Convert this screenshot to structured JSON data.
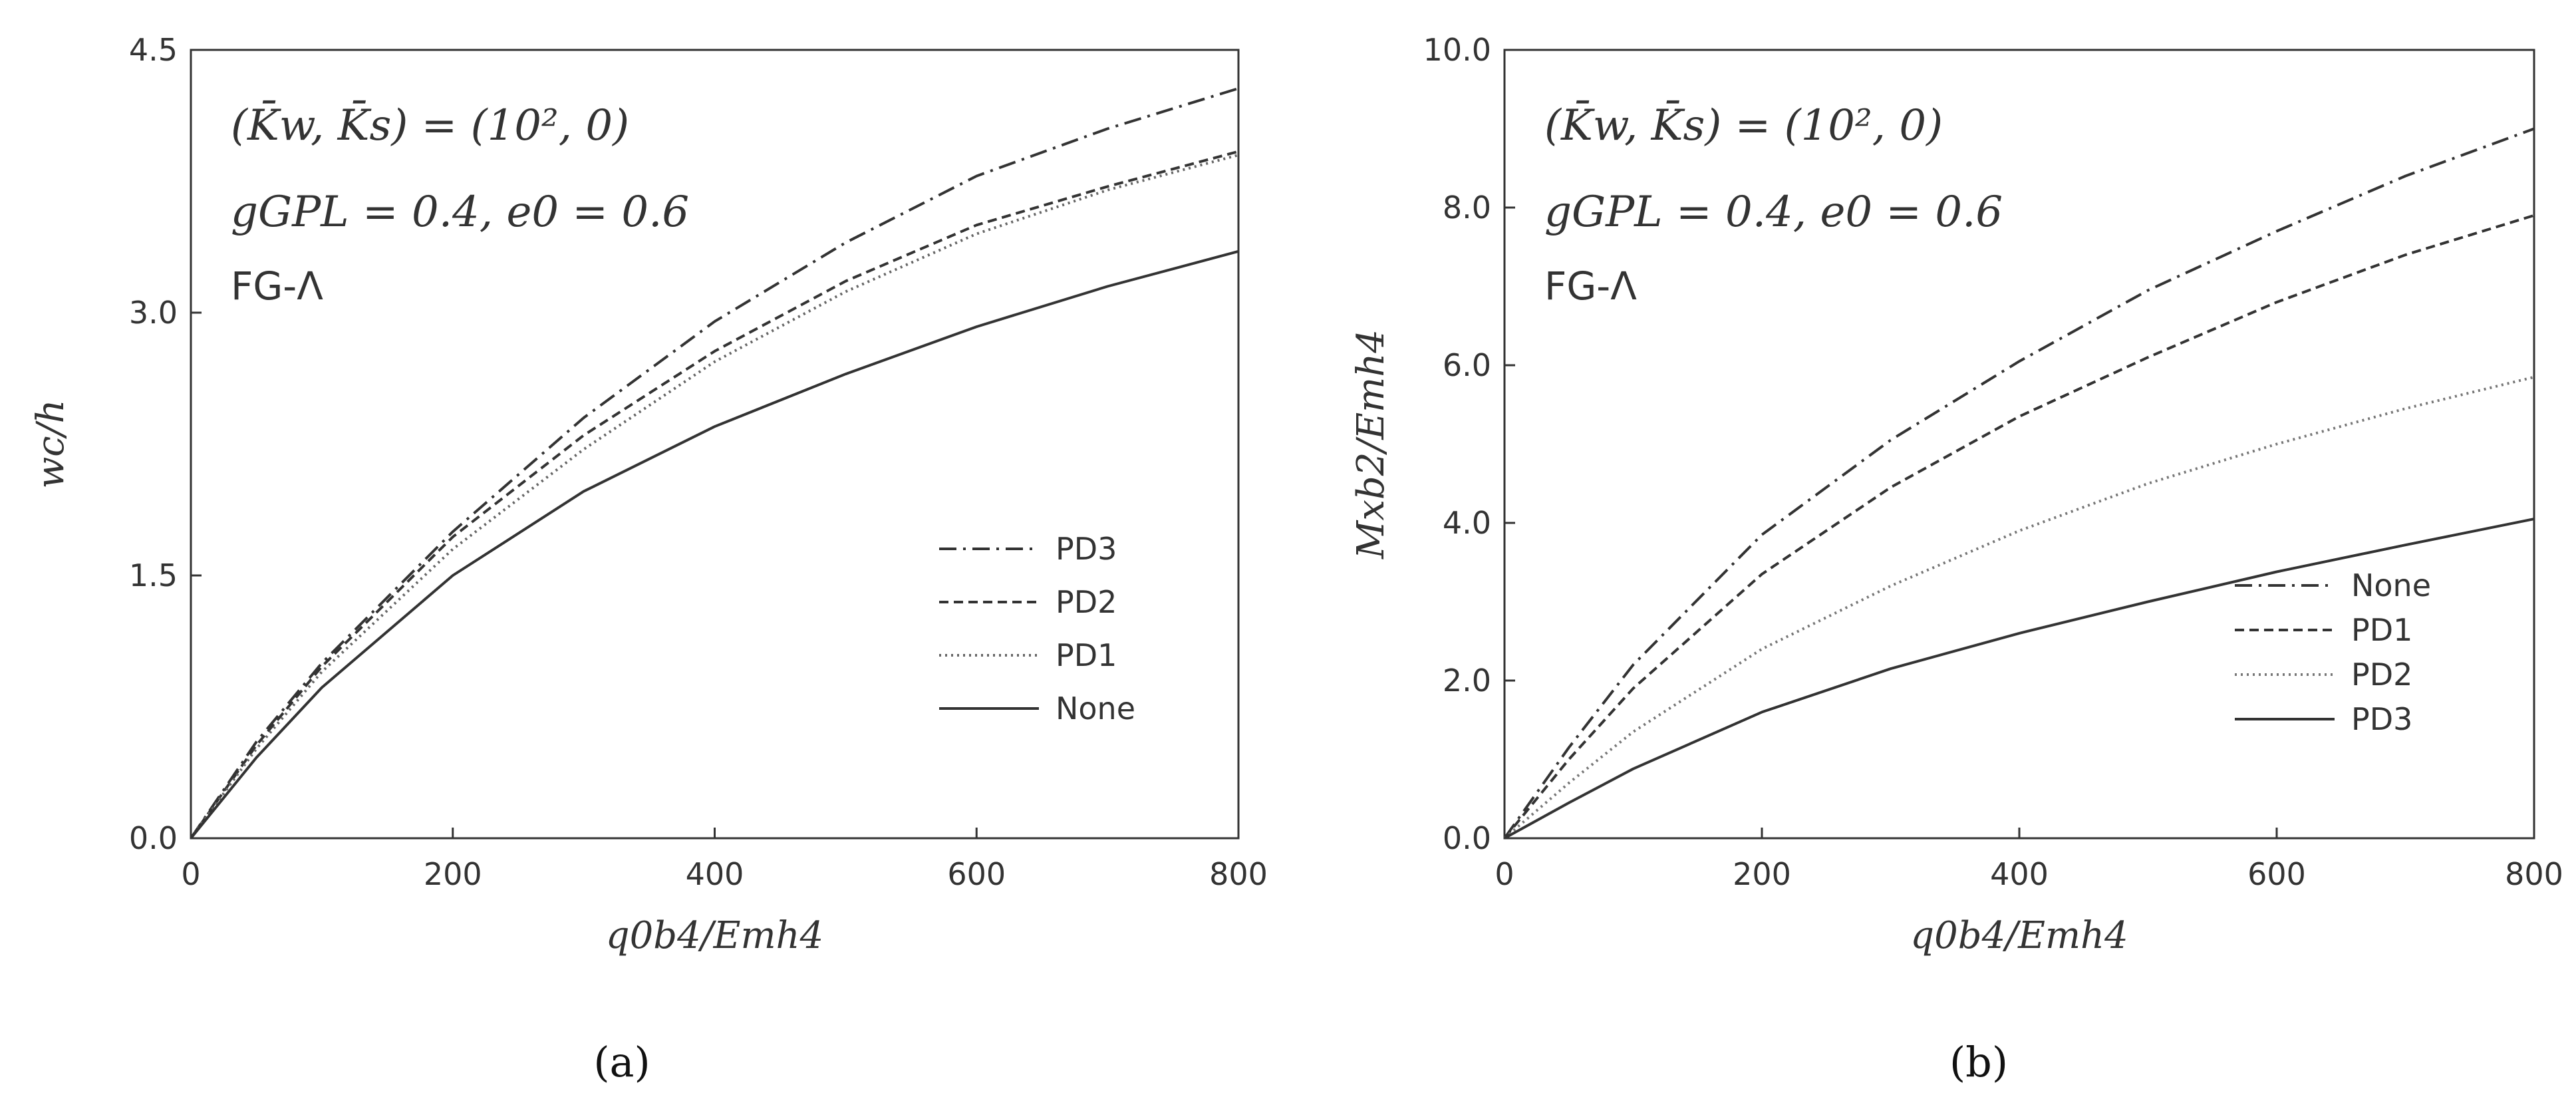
{
  "chart_data": [
    {
      "type": "line",
      "panel_label": "(a)",
      "xlabel": "q0b4/Emh4",
      "ylabel": "wc/h",
      "xlim": [
        0,
        800
      ],
      "ylim": [
        0,
        4.5
      ],
      "xticks": [
        "0",
        "200",
        "400",
        "600",
        "800"
      ],
      "yticks": [
        "0.0",
        "1.5",
        "3.0",
        "4.5"
      ],
      "grid": false,
      "legend_position": "bottom-right",
      "annotations": [
        "(K̄w, K̄s) = (10², 0)",
        "gGPL = 0.4, e0 = 0.6",
        "FG-Λ"
      ],
      "legend": [
        {
          "name": "PD3",
          "style": "dashdot"
        },
        {
          "name": "PD2",
          "style": "dashed"
        },
        {
          "name": "PD1",
          "style": "dotted"
        },
        {
          "name": "None",
          "style": "solid"
        }
      ],
      "series": [
        {
          "name": "PD3",
          "style": "dashdot",
          "color": "#333333",
          "x": [
            0,
            50,
            100,
            200,
            300,
            400,
            500,
            600,
            700,
            800
          ],
          "y": [
            0,
            0.55,
            1.0,
            1.75,
            2.4,
            2.95,
            3.4,
            3.78,
            4.05,
            4.28
          ]
        },
        {
          "name": "PD2",
          "style": "dashed",
          "color": "#333333",
          "x": [
            0,
            50,
            100,
            200,
            300,
            400,
            500,
            600,
            700,
            800
          ],
          "y": [
            0,
            0.53,
            0.98,
            1.72,
            2.3,
            2.78,
            3.18,
            3.5,
            3.72,
            3.92
          ]
        },
        {
          "name": "PD1",
          "style": "dotted",
          "color": "#666666",
          "x": [
            0,
            50,
            100,
            200,
            300,
            400,
            500,
            600,
            700,
            800
          ],
          "y": [
            0,
            0.51,
            0.95,
            1.65,
            2.22,
            2.72,
            3.12,
            3.45,
            3.7,
            3.9
          ]
        },
        {
          "name": "None",
          "style": "solid",
          "color": "#333333",
          "x": [
            0,
            50,
            100,
            200,
            300,
            400,
            500,
            600,
            700,
            800
          ],
          "y": [
            0,
            0.46,
            0.86,
            1.5,
            1.98,
            2.35,
            2.65,
            2.92,
            3.15,
            3.35
          ]
        }
      ]
    },
    {
      "type": "line",
      "panel_label": "(b)",
      "xlabel": "q0b4/Emh4",
      "ylabel": "Mxb2/Emh4",
      "xlim": [
        0,
        800
      ],
      "ylim": [
        0,
        10
      ],
      "xticks": [
        "0",
        "200",
        "400",
        "600",
        "800"
      ],
      "yticks": [
        "0.0",
        "2.0",
        "4.0",
        "6.0",
        "8.0",
        "10.0"
      ],
      "grid": false,
      "legend_position": "bottom-right",
      "annotations": [
        "(K̄w, K̄s) = (10², 0)",
        "gGPL = 0.4, e0 = 0.6",
        "FG-Λ"
      ],
      "legend": [
        {
          "name": "None",
          "style": "dashdot"
        },
        {
          "name": "PD1",
          "style": "dashed"
        },
        {
          "name": "PD2",
          "style": "dotted"
        },
        {
          "name": "PD3",
          "style": "solid"
        }
      ],
      "series": [
        {
          "name": "None",
          "style": "dashdot",
          "color": "#333333",
          "x": [
            0,
            50,
            100,
            200,
            300,
            400,
            500,
            600,
            700,
            800
          ],
          "y": [
            0,
            1.15,
            2.2,
            3.85,
            5.05,
            6.05,
            6.95,
            7.7,
            8.4,
            9.0
          ]
        },
        {
          "name": "PD1",
          "style": "dashed",
          "color": "#333333",
          "x": [
            0,
            50,
            100,
            200,
            300,
            400,
            500,
            600,
            700,
            800
          ],
          "y": [
            0,
            1.0,
            1.9,
            3.35,
            4.45,
            5.35,
            6.1,
            6.8,
            7.4,
            7.9
          ]
        },
        {
          "name": "PD2",
          "style": "dotted",
          "color": "#777777",
          "x": [
            0,
            50,
            100,
            200,
            300,
            400,
            500,
            600,
            700,
            800
          ],
          "y": [
            0,
            0.7,
            1.35,
            2.4,
            3.2,
            3.9,
            4.5,
            5.0,
            5.45,
            5.85
          ]
        },
        {
          "name": "PD3",
          "style": "solid",
          "color": "#333333",
          "x": [
            0,
            50,
            100,
            200,
            300,
            400,
            500,
            600,
            700,
            800
          ],
          "y": [
            0,
            0.45,
            0.88,
            1.6,
            2.15,
            2.6,
            3.0,
            3.38,
            3.72,
            4.05
          ]
        }
      ]
    }
  ]
}
